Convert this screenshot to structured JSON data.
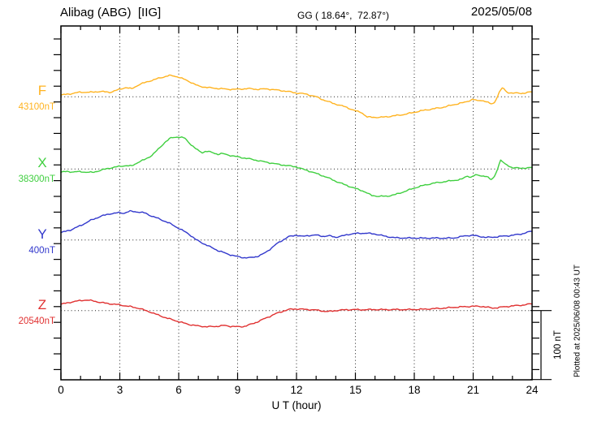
{
  "header": {
    "station": "Alibag (ABG)  [IIG]",
    "coords": "GG ( 18.64°,  72.87°)",
    "date": "2025/05/08"
  },
  "axes": {
    "x_label": "U T (hour)",
    "x_min": 0,
    "x_max": 24,
    "x_ticks": [
      "0",
      "3",
      "6",
      "9",
      "12",
      "15",
      "18",
      "21",
      "24"
    ],
    "x_tick_hours": [
      0,
      3,
      6,
      9,
      12,
      15,
      18,
      21,
      24
    ],
    "grid_hours": [
      3,
      6,
      9,
      12,
      15,
      18,
      21
    ]
  },
  "scale_bar": {
    "label": "100 nT",
    "span_nt": 100
  },
  "plotted_at": "Plotted at 2025/06/08 00:43 UT",
  "chart_data": {
    "type": "line",
    "title": "Alibag (ABG)  [IIG]",
    "date": "2025/05/08",
    "xlabel": "U T (hour)",
    "x_range": [
      0,
      24
    ],
    "grid": "dotted vertical every 3 h; dotted horizontal at each channel baseline",
    "legend_position": "left channel labels",
    "nt_per_division": 100,
    "series": [
      {
        "name": "F",
        "base_label": "43100nT",
        "base_value": 43100,
        "color": "#FFB320",
        "points": [
          [
            0,
            2.4
          ],
          [
            0.5,
            4.5
          ],
          [
            1,
            6.8
          ],
          [
            1.5,
            6.5
          ],
          [
            2,
            7.8
          ],
          [
            2.5,
            6.5
          ],
          [
            3,
            10.9
          ],
          [
            3.3,
            13.6
          ],
          [
            3.6,
            11.5
          ],
          [
            4,
            18
          ],
          [
            4.5,
            22.7
          ],
          [
            5,
            27
          ],
          [
            5.5,
            30.9
          ],
          [
            5.8,
            30
          ],
          [
            6,
            28.6
          ],
          [
            6.5,
            22.7
          ],
          [
            7,
            15.6
          ],
          [
            7.5,
            13.3
          ],
          [
            8,
            12.1
          ],
          [
            8.5,
            11
          ],
          [
            9,
            10.9
          ],
          [
            9.5,
            12
          ],
          [
            10,
            10.9
          ],
          [
            10.5,
            11.5
          ],
          [
            11,
            9.8
          ],
          [
            11.5,
            8
          ],
          [
            12,
            5.6
          ],
          [
            12.5,
            4
          ],
          [
            13,
            0
          ],
          [
            13.5,
            -5.9
          ],
          [
            14,
            -10.6
          ],
          [
            14.5,
            -14.6
          ],
          [
            15,
            -20.5
          ],
          [
            15.3,
            -22.4
          ],
          [
            15.6,
            -29.4
          ],
          [
            16,
            -29.6
          ],
          [
            16.3,
            -29.8
          ],
          [
            16.8,
            -28.2
          ],
          [
            17.5,
            -25.5
          ],
          [
            18,
            -22.4
          ],
          [
            18.5,
            -19.5
          ],
          [
            19,
            -17.3
          ],
          [
            19.5,
            -15
          ],
          [
            20,
            -11.4
          ],
          [
            20.5,
            -8.5
          ],
          [
            21,
            -3.5
          ],
          [
            21.2,
            -5.9
          ],
          [
            21.4,
            -4.7
          ],
          [
            21.7,
            -7.5
          ],
          [
            21.9,
            -10.6
          ],
          [
            22.1,
            -8
          ],
          [
            22.3,
            5
          ],
          [
            22.5,
            13.6
          ],
          [
            22.7,
            7
          ],
          [
            23,
            5.1
          ],
          [
            23.3,
            5.5
          ],
          [
            23.6,
            5.2
          ],
          [
            24,
            7.4
          ]
        ]
      },
      {
        "name": "X",
        "base_label": "38300nT",
        "base_value": 38300,
        "color": "#3FCF3F",
        "points": [
          [
            0,
            -4.7
          ],
          [
            0.3,
            -3.5
          ],
          [
            0.6,
            -4.2
          ],
          [
            1,
            -3.8
          ],
          [
            1.3,
            -4.5
          ],
          [
            1.6,
            -5
          ],
          [
            2,
            -2
          ],
          [
            2.5,
            1.5
          ],
          [
            3,
            3.9
          ],
          [
            3.3,
            5
          ],
          [
            3.6,
            4.3
          ],
          [
            4,
            10.9
          ],
          [
            4.3,
            14
          ],
          [
            4.6,
            19.2
          ],
          [
            5,
            29.8
          ],
          [
            5.3,
            39
          ],
          [
            5.6,
            45
          ],
          [
            5.9,
            46.6
          ],
          [
            6.1,
            46
          ],
          [
            6.3,
            45
          ],
          [
            6.5,
            39
          ],
          [
            6.8,
            31
          ],
          [
            7,
            26.6
          ],
          [
            7.2,
            23.9
          ],
          [
            7.4,
            26
          ],
          [
            7.6,
            24.7
          ],
          [
            8,
            21.5
          ],
          [
            8.2,
            22.5
          ],
          [
            8.5,
            20.5
          ],
          [
            9,
            17.6
          ],
          [
            9.5,
            15.3
          ],
          [
            10,
            12.5
          ],
          [
            10.5,
            9.8
          ],
          [
            11,
            7.1
          ],
          [
            11.5,
            5.1
          ],
          [
            12,
            3.1
          ],
          [
            12.3,
            0
          ],
          [
            12.6,
            -2.5
          ],
          [
            13,
            -6.4
          ],
          [
            13.5,
            -11.4
          ],
          [
            14,
            -17.6
          ],
          [
            14.5,
            -23.2
          ],
          [
            15,
            -28.2
          ],
          [
            15.4,
            -31.8
          ],
          [
            15.8,
            -38.1
          ],
          [
            16.2,
            -39.6
          ],
          [
            16.6,
            -39.4
          ],
          [
            17,
            -37.3
          ],
          [
            17.5,
            -32.6
          ],
          [
            18,
            -27.5
          ],
          [
            18.5,
            -23.5
          ],
          [
            19,
            -20.4
          ],
          [
            19.5,
            -18.5
          ],
          [
            20,
            -16.5
          ],
          [
            20.4,
            -15
          ],
          [
            20.7,
            -9.9
          ],
          [
            20.9,
            -12
          ],
          [
            21.1,
            -8.7
          ],
          [
            21.4,
            -9.5
          ],
          [
            21.7,
            -11
          ],
          [
            21.9,
            -15.8
          ],
          [
            22.1,
            -10
          ],
          [
            22.4,
            12.5
          ],
          [
            22.6,
            8
          ],
          [
            22.8,
            5.1
          ],
          [
            23,
            1.2
          ],
          [
            23.4,
            1.8
          ],
          [
            23.7,
            1
          ],
          [
            24,
            2.4
          ]
        ]
      },
      {
        "name": "Y",
        "base_label": "400nT",
        "base_value": 400,
        "color": "#3238CC",
        "points": [
          [
            0,
            10.6
          ],
          [
            0.5,
            14.6
          ],
          [
            1,
            20.8
          ],
          [
            1.5,
            28.2
          ],
          [
            2,
            34.1
          ],
          [
            2.5,
            38
          ],
          [
            3,
            39.6
          ],
          [
            3.2,
            38.8
          ],
          [
            3.5,
            41.6
          ],
          [
            3.8,
            41
          ],
          [
            4,
            40.4
          ],
          [
            4.3,
            39
          ],
          [
            4.5,
            36.1
          ],
          [
            5,
            30.6
          ],
          [
            5.5,
            24.7
          ],
          [
            6,
            16.9
          ],
          [
            6.5,
            9
          ],
          [
            6.9,
            0
          ],
          [
            7.5,
            -8.6
          ],
          [
            8,
            -15.3
          ],
          [
            8.5,
            -20.4
          ],
          [
            9,
            -24.2
          ],
          [
            9.3,
            -25.5
          ],
          [
            9.6,
            -25.9
          ],
          [
            10,
            -23.9
          ],
          [
            10.3,
            -20.4
          ],
          [
            10.6,
            -14.5
          ],
          [
            11,
            -5.4
          ],
          [
            11.3,
            0
          ],
          [
            11.6,
            4.7
          ],
          [
            12,
            7.1
          ],
          [
            12.3,
            5
          ],
          [
            12.6,
            6.5
          ],
          [
            13,
            7.1
          ],
          [
            13.4,
            5.2
          ],
          [
            13.7,
            6
          ],
          [
            14,
            4
          ],
          [
            14.3,
            5.5
          ],
          [
            14.6,
            7.9
          ],
          [
            15,
            9.4
          ],
          [
            15.5,
            9.9
          ],
          [
            16,
            8.7
          ],
          [
            16.5,
            5.5
          ],
          [
            17,
            3.2
          ],
          [
            17.5,
            2.8
          ],
          [
            18,
            2.8
          ],
          [
            18.5,
            2.6
          ],
          [
            19,
            2.8
          ],
          [
            19.5,
            2.6
          ],
          [
            20,
            2.8
          ],
          [
            20.3,
            4.4
          ],
          [
            20.7,
            6.4
          ],
          [
            21,
            6.7
          ],
          [
            21.3,
            5.2
          ],
          [
            21.7,
            3.6
          ],
          [
            22,
            4
          ],
          [
            22.5,
            5.5
          ],
          [
            23,
            6.7
          ],
          [
            23.5,
            9
          ],
          [
            24,
            12.9
          ]
        ]
      },
      {
        "name": "Z",
        "base_label": "20540nT",
        "base_value": 20540,
        "color": "#E03030",
        "points": [
          [
            0,
            9.1
          ],
          [
            0.5,
            12.2
          ],
          [
            1,
            14.6
          ],
          [
            1.3,
            15.3
          ],
          [
            1.7,
            13.8
          ],
          [
            2,
            11.8
          ],
          [
            2.5,
            9.9
          ],
          [
            3,
            8.2
          ],
          [
            3.5,
            5.9
          ],
          [
            4,
            3.2
          ],
          [
            4.3,
            0
          ],
          [
            4.6,
            -2.5
          ],
          [
            5,
            -7.1
          ],
          [
            5.5,
            -11.8
          ],
          [
            6,
            -16
          ],
          [
            6.5,
            -20
          ],
          [
            7,
            -22.4
          ],
          [
            7.5,
            -23.5
          ],
          [
            8,
            -22.7
          ],
          [
            8.3,
            -21.5
          ],
          [
            8.6,
            -22.7
          ],
          [
            9,
            -23.5
          ],
          [
            9.3,
            -23.1
          ],
          [
            9.6,
            -20.7
          ],
          [
            10,
            -16.5
          ],
          [
            10.5,
            -10.1
          ],
          [
            11,
            -3.9
          ],
          [
            11.4,
            0
          ],
          [
            11.7,
            2
          ],
          [
            12,
            2.4
          ],
          [
            12.5,
            1.6
          ],
          [
            13,
            0.8
          ],
          [
            13.3,
            -0.5
          ],
          [
            13.6,
            -1.5
          ],
          [
            14,
            0
          ],
          [
            14.5,
            1.2
          ],
          [
            15,
            1.4
          ],
          [
            15.5,
            1.2
          ],
          [
            16,
            1.5
          ],
          [
            16.5,
            1.3
          ],
          [
            17,
            1.5
          ],
          [
            17.5,
            1.4
          ],
          [
            18,
            1.6
          ],
          [
            18.5,
            2
          ],
          [
            19,
            2.8
          ],
          [
            19.5,
            3.5
          ],
          [
            20,
            4.7
          ],
          [
            20.5,
            5.5
          ],
          [
            21,
            6.3
          ],
          [
            21.5,
            5.9
          ],
          [
            22,
            3.5
          ],
          [
            22.3,
            4.5
          ],
          [
            22.5,
            5.2
          ],
          [
            23,
            6.7
          ],
          [
            23.5,
            7.9
          ],
          [
            24,
            9.9
          ]
        ]
      }
    ]
  }
}
